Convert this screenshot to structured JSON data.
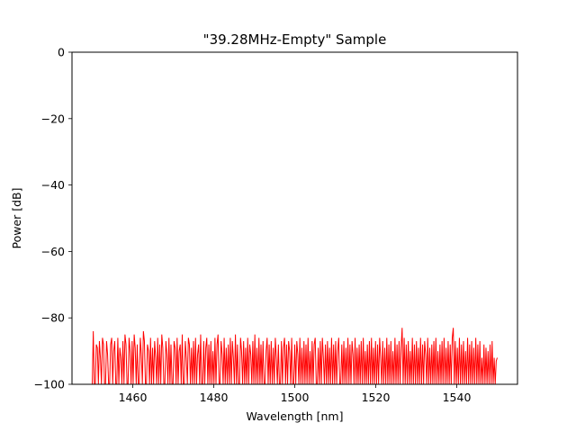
{
  "chart_data": {
    "type": "line",
    "title": "\"39.28MHz-Empty\" Sample",
    "xlabel": "Wavelength [nm]",
    "ylabel": "Power [dB]",
    "xlim": [
      1445,
      1555
    ],
    "ylim": [
      -100,
      0
    ],
    "x_ticks": [
      1460,
      1480,
      1500,
      1520,
      1540
    ],
    "y_ticks": [
      0,
      -20,
      -40,
      -60,
      -80,
      -100
    ],
    "x_tick_labels": [
      "1460",
      "1480",
      "1500",
      "1520",
      "1540"
    ],
    "y_tick_labels": [
      "0",
      "−20",
      "−40",
      "−60",
      "−80",
      "−100"
    ],
    "grid": false,
    "series": [
      {
        "color": "#ff0000",
        "x_start": 1450,
        "x_end": 1550,
        "values": [
          -100,
          -84,
          -100,
          -100,
          -88,
          -89,
          -100,
          -87,
          -92,
          -100,
          -86,
          -88,
          -100,
          -100,
          -87,
          -91,
          -100,
          -100,
          -88,
          -86,
          -100,
          -90,
          -87,
          -100,
          -100,
          -86,
          -100,
          -89,
          -92,
          -100,
          -87,
          -100,
          -85,
          -88,
          -100,
          -100,
          -86,
          -90,
          -100,
          -87,
          -100,
          -85,
          -89,
          -100,
          -88,
          -100,
          -100,
          -86,
          -91,
          -100,
          -84,
          -87,
          -100,
          -100,
          -88,
          -90,
          -100,
          -86,
          -100,
          -89,
          -100,
          -87,
          -92,
          -100,
          -86,
          -100,
          -88,
          -100,
          -85,
          -89,
          -100,
          -100,
          -87,
          -91,
          -100,
          -86,
          -100,
          -88,
          -100,
          -100,
          -87,
          -89,
          -100,
          -86,
          -100,
          -90,
          -88,
          -100,
          -85,
          -100,
          -100,
          -87,
          -92,
          -100,
          -86,
          -88,
          -100,
          -89,
          -100,
          -87,
          -100,
          -86,
          -100,
          -91,
          -88,
          -100,
          -85,
          -100,
          -100,
          -87,
          -100,
          -89,
          -86,
          -100,
          -88,
          -100,
          -87,
          -100,
          -90,
          -100,
          -86,
          -100,
          -88,
          -85,
          -100,
          -100,
          -87,
          -91,
          -100,
          -86,
          -100,
          -89,
          -100,
          -88,
          -100,
          -86,
          -100,
          -87,
          -92,
          -100,
          -85,
          -100,
          -88,
          -100,
          -100,
          -86,
          -90,
          -100,
          -87,
          -100,
          -89,
          -100,
          -86,
          -100,
          -88,
          -91,
          -100,
          -87,
          -100,
          -85,
          -100,
          -89,
          -100,
          -86,
          -100,
          -88,
          -100,
          -87,
          -100,
          -100,
          -90,
          -86,
          -100,
          -88,
          -100,
          -87,
          -100,
          -89,
          -100,
          -86,
          -92,
          -100,
          -88,
          -100,
          -100,
          -87,
          -100,
          -89,
          -86,
          -100,
          -88,
          -100,
          -87,
          -90,
          -100,
          -86,
          -100,
          -100,
          -88,
          -100,
          -87,
          -91,
          -100,
          -86,
          -100,
          -89,
          -100,
          -87,
          -100,
          -88,
          -100,
          -86,
          -100,
          -90,
          -100,
          -87,
          -100,
          -88,
          -86,
          -100,
          -100,
          -89,
          -100,
          -87,
          -100,
          -86,
          -92,
          -100,
          -88,
          -100,
          -87,
          -100,
          -89,
          -100,
          -86,
          -100,
          -88,
          -100,
          -87,
          -100,
          -90,
          -86,
          -100,
          -100,
          -88,
          -100,
          -87,
          -100,
          -89,
          -100,
          -86,
          -100,
          -88,
          -100,
          -87,
          -91,
          -100,
          -86,
          -100,
          -89,
          -100,
          -88,
          -100,
          -87,
          -100,
          -86,
          -100,
          -90,
          -100,
          -88,
          -100,
          -87,
          -100,
          -86,
          -100,
          -89,
          -100,
          -87,
          -100,
          -88,
          -100,
          -86,
          -92,
          -100,
          -87,
          -100,
          -89,
          -100,
          -86,
          -100,
          -88,
          -100,
          -87,
          -100,
          -90,
          -100,
          -86,
          -100,
          -88,
          -100,
          -87,
          -100,
          -89,
          -83,
          -100,
          -86,
          -100,
          -88,
          -100,
          -87,
          -100,
          -90,
          -100,
          -86,
          -100,
          -88,
          -100,
          -87,
          -100,
          -89,
          -100,
          -86,
          -100,
          -88,
          -100,
          -87,
          -91,
          -100,
          -86,
          -100,
          -89,
          -100,
          -88,
          -100,
          -87,
          -100,
          -86,
          -100,
          -90,
          -100,
          -88,
          -100,
          -87,
          -100,
          -86,
          -100,
          -89,
          -100,
          -87,
          -100,
          -88,
          -100,
          -86,
          -83,
          -100,
          -87,
          -100,
          -89,
          -100,
          -86,
          -100,
          -88,
          -100,
          -87,
          -100,
          -90,
          -100,
          -86,
          -100,
          -88,
          -100,
          -87,
          -100,
          -89,
          -100,
          -86,
          -100,
          -88,
          -100,
          -87,
          -100,
          -92,
          -100,
          -88,
          -100,
          -89,
          -100,
          -90,
          -100,
          -88,
          -100,
          -87,
          -100,
          -92,
          -100,
          -93,
          -92
        ]
      }
    ]
  }
}
